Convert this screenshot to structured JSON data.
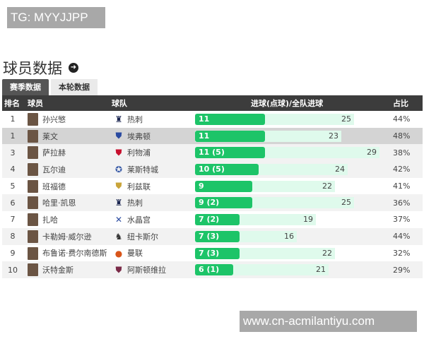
{
  "watermarks": {
    "top": "TG: MYYJJPP",
    "bottom": "www.cn-acmilantiyu.com"
  },
  "section": {
    "title": "球员数据",
    "arrow_icon": "circle-arrow-right-icon"
  },
  "tabs": [
    {
      "label": "赛季数据",
      "active": true
    },
    {
      "label": "本轮数据",
      "active": false
    }
  ],
  "table": {
    "headers": {
      "rank": "排名",
      "player": "球员",
      "team": "球队",
      "goals": "进球(点球)/全队进球",
      "ratio": "占比"
    },
    "rows": [
      {
        "rank": "1",
        "player": "孙兴慜",
        "team": "热刺",
        "goals": "11",
        "goals_num": 11,
        "team_goals": "25",
        "team_goals_num": 25,
        "ratio": "44%",
        "crest": "spurs-crest-icon",
        "style": "white"
      },
      {
        "rank": "1",
        "player": "莱文",
        "team": "埃弗顿",
        "goals": "11",
        "goals_num": 11,
        "team_goals": "23",
        "team_goals_num": 23,
        "ratio": "48%",
        "crest": "everton-crest-icon",
        "style": "hl"
      },
      {
        "rank": "3",
        "player": "萨拉赫",
        "team": "利物浦",
        "goals": "11 (5)",
        "goals_num": 11,
        "team_goals": "29",
        "team_goals_num": 29,
        "ratio": "38%",
        "crest": "liverpool-crest-icon",
        "style": "alt"
      },
      {
        "rank": "4",
        "player": "瓦尔迪",
        "team": "莱斯特城",
        "goals": "10 (5)",
        "goals_num": 10,
        "team_goals": "24",
        "team_goals_num": 24,
        "ratio": "42%",
        "crest": "leicester-crest-icon",
        "style": "alt"
      },
      {
        "rank": "5",
        "player": "班福德",
        "team": "利兹联",
        "goals": "9",
        "goals_num": 9,
        "team_goals": "22",
        "team_goals_num": 22,
        "ratio": "41%",
        "crest": "leeds-crest-icon",
        "style": "white"
      },
      {
        "rank": "6",
        "player": "哈里·凯恩",
        "team": "热刺",
        "goals": "9 (2)",
        "goals_num": 9,
        "team_goals": "25",
        "team_goals_num": 25,
        "ratio": "36%",
        "crest": "spurs-crest-icon",
        "style": "alt"
      },
      {
        "rank": "7",
        "player": "扎哈",
        "team": "水晶宫",
        "goals": "7 (2)",
        "goals_num": 7,
        "team_goals": "19",
        "team_goals_num": 19,
        "ratio": "37%",
        "crest": "crystal-palace-crest-icon",
        "style": "white"
      },
      {
        "rank": "8",
        "player": "卡勒姆·威尔逊",
        "team": "纽卡斯尔",
        "goals": "7 (3)",
        "goals_num": 7,
        "team_goals": "16",
        "team_goals_num": 16,
        "ratio": "44%",
        "crest": "newcastle-crest-icon",
        "style": "alt"
      },
      {
        "rank": "9",
        "player": "布鲁诺·费尔南德斯",
        "team": "曼联",
        "goals": "7 (3)",
        "goals_num": 7,
        "team_goals": "22",
        "team_goals_num": 22,
        "ratio": "32%",
        "crest": "man-utd-crest-icon",
        "style": "white"
      },
      {
        "rank": "10",
        "player": "沃特金斯",
        "team": "阿斯顿维拉",
        "goals": "6 (1)",
        "goals_num": 6,
        "team_goals": "21",
        "team_goals_num": 21,
        "ratio": "29%",
        "crest": "aston-villa-crest-icon",
        "style": "alt"
      }
    ]
  },
  "colors": {
    "header_bg": "#3c3c3c",
    "goal_bar": "#1dc468",
    "team_bar": "#dffaec",
    "highlight_row": "#d4d4d4",
    "alt_row": "#f2f2f2",
    "watermark_bg": "#a8a8a8"
  }
}
